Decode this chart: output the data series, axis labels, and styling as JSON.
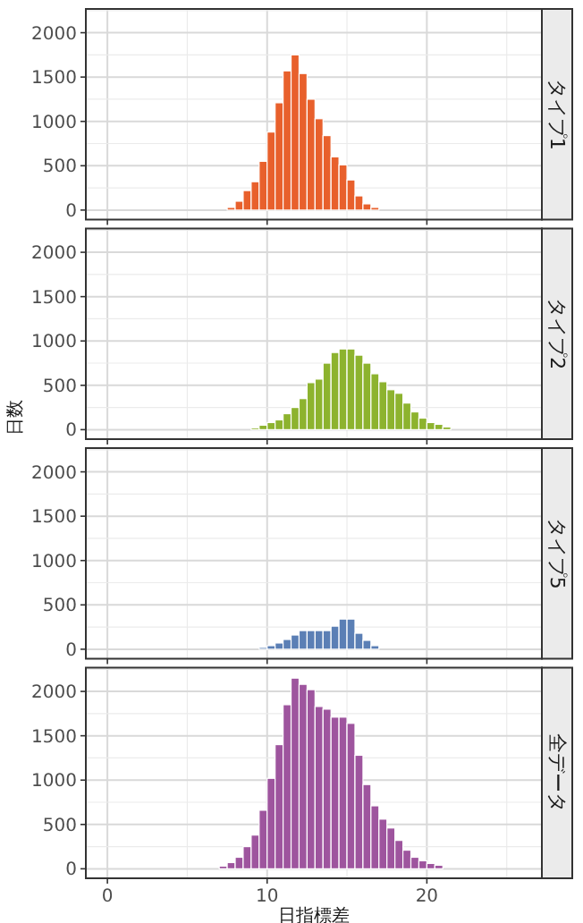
{
  "chart_data": [
    {
      "type": "histogram",
      "title": "タイプ1",
      "color": "#e8602c",
      "bins": [
        7.5,
        8,
        8.5,
        9,
        9.5,
        10,
        10.5,
        11,
        11.5,
        12,
        12.5,
        13,
        13.5,
        14,
        14.5,
        15,
        15.5,
        16,
        16.5,
        17
      ],
      "values": [
        30,
        100,
        220,
        320,
        550,
        880,
        1210,
        1570,
        1750,
        1540,
        1250,
        1030,
        840,
        600,
        510,
        340,
        160,
        70,
        30
      ],
      "xlim": [
        -1.35,
        27.2
      ],
      "ylim": [
        -107,
        2268
      ],
      "xticks": [
        0,
        10,
        20
      ],
      "yticks": [
        0,
        500,
        1000,
        1500,
        2000
      ],
      "grid": true,
      "tick_labels": "y"
    },
    {
      "type": "histogram",
      "title": "タイプ2",
      "ylabel": "日数",
      "color": "#8db32e",
      "bins": [
        9,
        9.5,
        10,
        10.5,
        11,
        11.5,
        12,
        12.5,
        13,
        13.5,
        14,
        14.5,
        15,
        15.5,
        16,
        16.5,
        17,
        17.5,
        18,
        18.5,
        19,
        19.5,
        20,
        20.5,
        21,
        21.5
      ],
      "values": [
        20,
        50,
        80,
        110,
        180,
        250,
        350,
        530,
        570,
        750,
        870,
        910,
        910,
        840,
        750,
        630,
        540,
        450,
        410,
        300,
        200,
        130,
        80,
        60,
        30
      ],
      "xlim": [
        -1.35,
        27.2
      ],
      "ylim": [
        -107,
        2268
      ],
      "xticks": [
        0,
        10,
        20
      ],
      "yticks": [
        0,
        500,
        1000,
        1500,
        2000
      ],
      "grid": true,
      "tick_labels": "y"
    },
    {
      "type": "histogram",
      "title": "タイプ5",
      "color": "#5b7fb5",
      "bins": [
        9.5,
        10,
        10.5,
        11,
        11.5,
        12,
        12.5,
        13,
        13.5,
        14,
        14.5,
        15,
        15.5,
        16,
        16.5,
        17
      ],
      "values": [
        20,
        40,
        70,
        110,
        160,
        210,
        210,
        210,
        210,
        260,
        340,
        340,
        180,
        100,
        40
      ],
      "xlim": [
        -1.35,
        27.2
      ],
      "ylim": [
        -107,
        2268
      ],
      "xticks": [
        0,
        10,
        20
      ],
      "yticks": [
        0,
        500,
        1000,
        1500,
        2000
      ],
      "grid": true,
      "tick_labels": "y"
    },
    {
      "type": "histogram",
      "title": "全データ",
      "xlabel": "日指標差",
      "color": "#9e559e",
      "bins": [
        7,
        7.5,
        8,
        8.5,
        9,
        9.5,
        10,
        10.5,
        11,
        11.5,
        12,
        12.5,
        13,
        13.5,
        14,
        14.5,
        15,
        15.5,
        16,
        16.5,
        17,
        17.5,
        18,
        18.5,
        19,
        19.5,
        20,
        20.5,
        21
      ],
      "values": [
        30,
        70,
        130,
        250,
        380,
        660,
        1020,
        1400,
        1850,
        2150,
        2080,
        2020,
        1830,
        1800,
        1710,
        1710,
        1640,
        1280,
        950,
        710,
        560,
        460,
        320,
        210,
        130,
        90,
        60,
        40
      ],
      "xlim": [
        -1.35,
        27.2
      ],
      "ylim": [
        -107,
        2268
      ],
      "xticks": [
        0,
        10,
        20
      ],
      "yticks": [
        0,
        500,
        1000,
        1500,
        2000
      ],
      "grid": true
    }
  ]
}
